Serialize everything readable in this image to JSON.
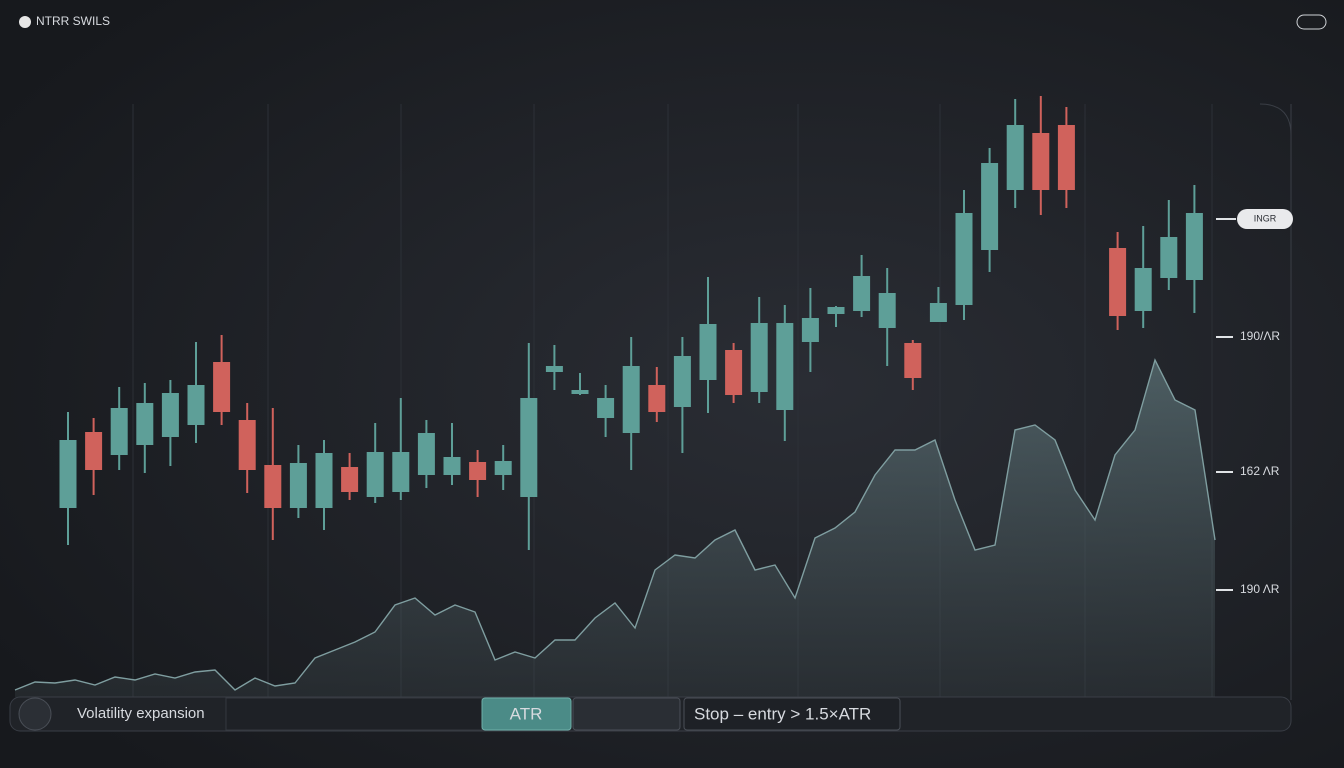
{
  "header": {
    "brand": "NTRR SWILS"
  },
  "chart_data": {
    "type": "candlestick",
    "open": [
      189,
      265,
      242,
      252,
      260,
      272,
      335,
      277,
      232,
      189,
      189,
      230,
      200,
      205,
      222,
      222,
      235,
      222,
      200,
      325,
      303,
      279,
      264,
      312,
      290,
      317,
      347,
      305,
      287,
      355,
      383,
      386,
      369,
      354,
      375,
      392,
      447,
      507,
      564,
      572,
      null,
      449,
      386,
      419,
      417
    ],
    "high": [
      285,
      279,
      310,
      314,
      317,
      355,
      362,
      294,
      289,
      252,
      257,
      244,
      274,
      299,
      277,
      274,
      247,
      252,
      354,
      352,
      324,
      312,
      360,
      330,
      360,
      420,
      354,
      400,
      392,
      409,
      391,
      442,
      429,
      357,
      410,
      507,
      549,
      598,
      601,
      590,
      null,
      465,
      471,
      497,
      512
    ],
    "low": [
      152,
      202,
      227,
      224,
      231,
      254,
      272,
      204,
      157,
      179,
      167,
      197,
      194,
      197,
      209,
      212,
      200,
      207,
      147,
      307,
      302,
      260,
      227,
      275,
      244,
      284,
      294,
      294,
      256,
      325,
      370,
      380,
      331,
      307,
      375,
      377,
      425,
      489,
      482,
      489,
      null,
      367,
      369,
      407,
      384
    ],
    "close": [
      257,
      227,
      289,
      294,
      304,
      312,
      285,
      227,
      189,
      234,
      244,
      205,
      245,
      245,
      264,
      240,
      217,
      236,
      299,
      331,
      307,
      299,
      331,
      285,
      341,
      373,
      302,
      374,
      374,
      379,
      390,
      421,
      404,
      319,
      394,
      484,
      534,
      572,
      507,
      507,
      null,
      381,
      429,
      460,
      484
    ],
    "up_color": "#5e9f98",
    "down_color": "#d0625c",
    "overlay": {
      "type": "area",
      "color": "#7f9ea0",
      "values": [
        7,
        15,
        14,
        17,
        12,
        20,
        17,
        23,
        19,
        25,
        27,
        7,
        19,
        11,
        14,
        39,
        47,
        55,
        65,
        92,
        99,
        82,
        92,
        85,
        37,
        45,
        39,
        57,
        57,
        79,
        94,
        69,
        127,
        142,
        139,
        157,
        167,
        127,
        132,
        99,
        159,
        169,
        185,
        222,
        247,
        247,
        257,
        197,
        147,
        152,
        267,
        272,
        257,
        207,
        177,
        242,
        267,
        337,
        297,
        287,
        157
      ]
    },
    "ylim": [
      0,
      600
    ],
    "yticks": [
      {
        "value": 360,
        "label": "190/ΛR"
      },
      {
        "value": 225,
        "label": "162 ΛR"
      },
      {
        "value": 107,
        "label": "190 ΛR"
      }
    ],
    "price_label": {
      "value": 478,
      "label": "INGR"
    },
    "grid": true
  },
  "footer": {
    "note": "Volatility expansion",
    "button": "ATR",
    "rule": "Stop – entry > 1.5×ATR"
  }
}
